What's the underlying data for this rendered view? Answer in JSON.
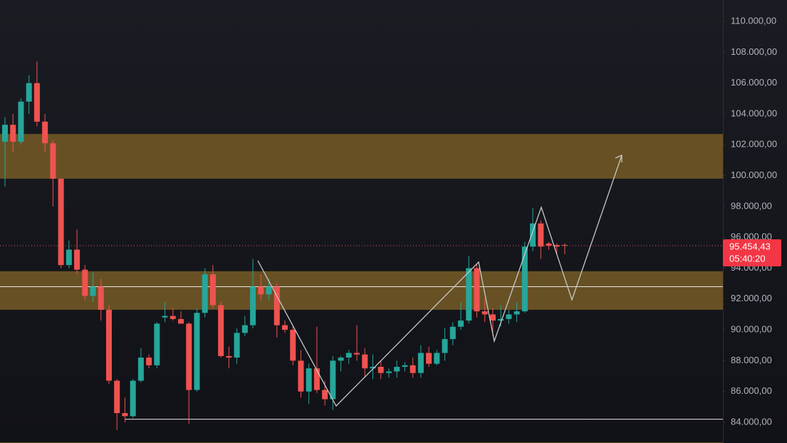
{
  "chart_data": {
    "type": "candlestick",
    "open": [
      102200,
      103300,
      102200,
      104800,
      106000,
      103500,
      102100,
      99800,
      94200,
      95200,
      93900,
      92200,
      92800,
      91300,
      86700,
      84600,
      84400,
      86700,
      88200,
      87700,
      90800,
      90900,
      90700,
      90400,
      86100,
      91100,
      93600,
      91600,
      88300,
      88200,
      89800,
      90300,
      92800,
      92300,
      92800,
      90300,
      90000,
      88000,
      86000,
      87500,
      86100,
      85500,
      88000,
      88200,
      88500,
      88400,
      87500,
      87600,
      87200,
      87300,
      87600,
      87700,
      87200,
      88500,
      87800,
      88500,
      89400,
      90200,
      90600,
      94000,
      91200,
      91000,
      90600,
      90700,
      91000,
      91200,
      95400,
      96900,
      95600,
      95500,
      95500
    ],
    "high": [
      103800,
      104000,
      105000,
      106500,
      107400,
      104000,
      102300,
      99800,
      95800,
      96500,
      94200,
      93700,
      93300,
      91600,
      86800,
      85600,
      86800,
      88800,
      88400,
      90500,
      91800,
      91400,
      91200,
      90500,
      91400,
      94000,
      94200,
      91800,
      88900,
      90100,
      90900,
      94600,
      93600,
      93300,
      93000,
      90600,
      90300,
      88700,
      87800,
      90200,
      86700,
      88300,
      88300,
      88700,
      90300,
      88800,
      88400,
      88000,
      87500,
      88000,
      87900,
      88200,
      89000,
      88900,
      88700,
      90100,
      90500,
      91800,
      94800,
      94300,
      92000,
      91400,
      91600,
      91300,
      91800,
      95700,
      97900,
      97100,
      95700,
      95600,
      95600
    ],
    "low": [
      99300,
      101500,
      102000,
      104000,
      103200,
      101500,
      98000,
      94000,
      94000,
      93600,
      91900,
      91800,
      90600,
      86500,
      83500,
      84000,
      84300,
      86600,
      87500,
      87500,
      90500,
      90600,
      90400,
      83900,
      86000,
      90800,
      91400,
      88200,
      87500,
      87800,
      89600,
      90100,
      91900,
      91900,
      89500,
      89800,
      87700,
      85600,
      85200,
      85900,
      85100,
      84800,
      87300,
      87800,
      88000,
      86900,
      86800,
      86800,
      86900,
      86900,
      87300,
      86900,
      86900,
      87600,
      87700,
      88000,
      89000,
      90000,
      90400,
      90800,
      90500,
      89600,
      90200,
      90400,
      90500,
      91100,
      95100,
      94600,
      95200,
      94900,
      94900
    ],
    "close": [
      103300,
      102200,
      104800,
      106000,
      103500,
      102100,
      99800,
      94200,
      95200,
      93900,
      92200,
      92800,
      91300,
      86700,
      84600,
      84400,
      86700,
      88200,
      87700,
      90400,
      90900,
      90700,
      90400,
      86100,
      91100,
      93600,
      91600,
      88300,
      88200,
      89800,
      90300,
      92800,
      92300,
      92800,
      90300,
      90000,
      88000,
      86000,
      87500,
      86100,
      85500,
      88000,
      88200,
      88500,
      88400,
      87500,
      87600,
      87200,
      87300,
      87600,
      87700,
      87200,
      88500,
      87800,
      88500,
      89400,
      90200,
      90600,
      94000,
      91200,
      91000,
      90600,
      90700,
      91000,
      91200,
      95400,
      96900,
      95400,
      95450,
      95400,
      95454.43
    ],
    "up_color": "#26a69a",
    "down_color": "#ef5350",
    "zone_color": "#6b5425",
    "zones": [
      [
        99800,
        102700
      ],
      [
        91300,
        93800
      ],
      [
        82600,
        82700
      ]
    ],
    "levels": [
      92800,
      84200
    ],
    "last_price": {
      "value": 95454.43,
      "label": "95.454,43"
    },
    "countdown": "05:40:20",
    "ylim": [
      82660,
      111390
    ],
    "yticks": [
      {
        "value": 84000,
        "label": "84.000,00"
      },
      {
        "value": 86000,
        "label": "86.000,00"
      },
      {
        "value": 88000,
        "label": "88.000,00"
      },
      {
        "value": 90000,
        "label": "90.000,00"
      },
      {
        "value": 92000,
        "label": "92.000,00"
      },
      {
        "value": 94000,
        "label": "94.000,00"
      },
      {
        "value": 96000,
        "label": "96.000,00"
      },
      {
        "value": 98000,
        "label": "98.000,00"
      },
      {
        "value": 100000,
        "label": "100.000,00"
      },
      {
        "value": 102000,
        "label": "102.000,00"
      },
      {
        "value": 104000,
        "label": "104.000,00"
      },
      {
        "value": 106000,
        "label": "106.000,00"
      },
      {
        "value": 108000,
        "label": "108.000,00"
      },
      {
        "value": 110000,
        "label": "110.000,00"
      }
    ]
  }
}
